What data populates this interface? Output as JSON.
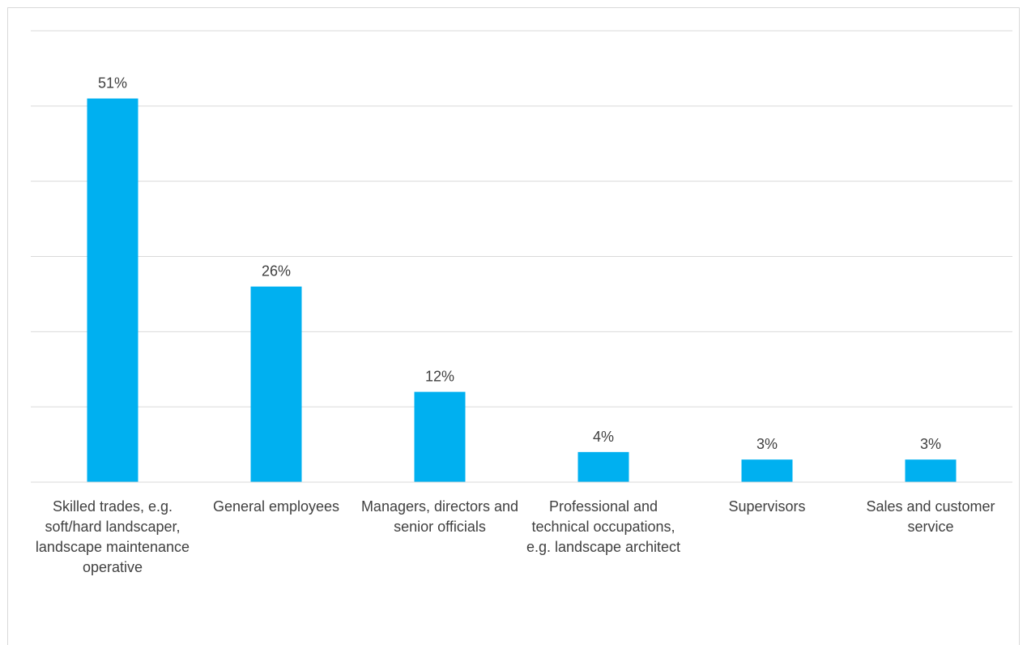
{
  "chart_data": {
    "type": "bar",
    "categories": [
      "Skilled trades, e.g. soft/hard landscaper, landscape maintenance operative",
      "General employees",
      "Managers, directors and senior officials",
      "Professional and technical occupations, e.g. landscape architect",
      "Supervisors",
      "Sales and customer service"
    ],
    "values": [
      51,
      26,
      12,
      4,
      3,
      3
    ],
    "value_labels": [
      "51%",
      "26%",
      "12%",
      "4%",
      "3%",
      "3%"
    ],
    "ylim": [
      0,
      60
    ],
    "grid": true,
    "bar_color": "#00B0F0",
    "legend": "none"
  }
}
